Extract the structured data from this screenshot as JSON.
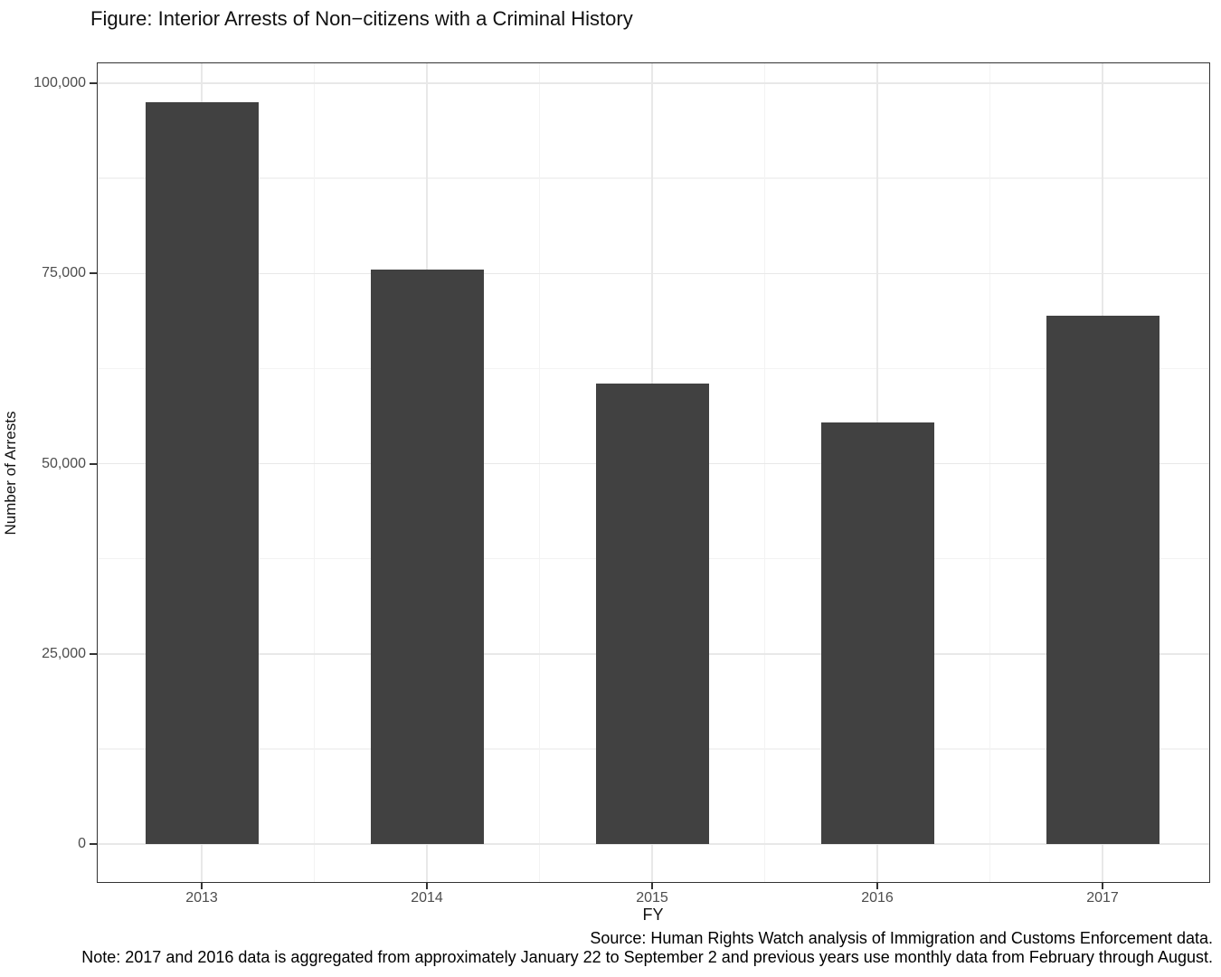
{
  "chart_data": {
    "type": "bar",
    "title": "Figure: Interior Arrests of Non−citizens with a Criminal History",
    "xlabel": "FY",
    "ylabel": "Number of Arrests",
    "categories": [
      "2013",
      "2014",
      "2015",
      "2016",
      "2017"
    ],
    "values": [
      97500,
      75500,
      60500,
      55400,
      69500
    ],
    "ylim": [
      0,
      100000
    ],
    "yticks": [
      0,
      25000,
      50000,
      75000,
      100000
    ],
    "ytick_labels": [
      "0",
      "25,000",
      "50,000",
      "75,000",
      "100,000"
    ],
    "yticks_minor": [
      12500,
      37500,
      62500,
      87500
    ],
    "grid": "major and minor, light grey on white panel",
    "legend": "none",
    "bar_color": "#414141",
    "panel_border_color": "#333333",
    "major_grid_color": "#e8e8e8",
    "minor_grid_color": "#f3f3f3",
    "tick_label_color": "#4d4d4d"
  },
  "captions": {
    "source": "Source: Human Rights Watch analysis of Immigration and Customs Enforcement data.",
    "note": "Note: 2017 and 2016 data is aggregated from approximately January 22 to September 2 and previous years use monthly data from February through August."
  }
}
